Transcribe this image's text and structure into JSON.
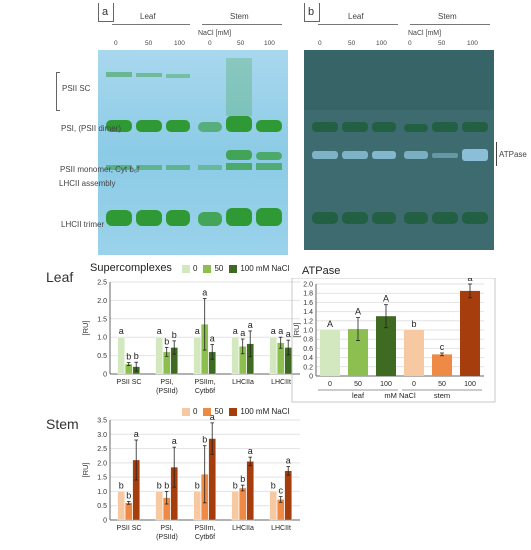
{
  "gel_a": {
    "panel": "a",
    "leaf_label": "Leaf",
    "stem_label": "Stem",
    "nacl_label": "NaCl [mM]",
    "lanes": [
      "0",
      "50",
      "100",
      "0",
      "50",
      "100"
    ],
    "bands": [
      "PSII SC",
      "PSI, (PSII dimer)",
      "PSII monomer, Cyt b₆f",
      "LHCII assembly",
      "LHCII trimer"
    ]
  },
  "gel_b": {
    "panel": "b",
    "leaf_label": "Leaf",
    "stem_label": "Stem",
    "nacl_label": "NaCl [mM]",
    "lanes": [
      "0",
      "50",
      "100",
      "0",
      "50",
      "100"
    ],
    "band": "ATPase"
  },
  "rows": {
    "leaf": "Leaf",
    "stem": "Stem"
  },
  "legend": {
    "title": "Supercomplexes",
    "items": [
      "0",
      "50",
      "100 mM NaCl"
    ],
    "leaf_colors": [
      "#d4e8bf",
      "#8cbf50",
      "#3f6a22"
    ],
    "stem_colors": [
      "#f7c9a2",
      "#ee8a45",
      "#a63d0c"
    ]
  },
  "chart_data": [
    {
      "id": "leaf-supercomplexes",
      "type": "bar",
      "ylabel": "[RU]",
      "ylim": [
        0,
        2.5
      ],
      "yticks": [
        "0",
        "0.5",
        "1.0",
        "1.5",
        "2.0",
        "2.5"
      ],
      "categories": [
        "PSII SC",
        "PSI, (PSIId)",
        "PSIIm, Cytb6f",
        "LHCIIa",
        "LHCIIt"
      ],
      "category_lines": [
        [
          "PSII SC"
        ],
        [
          "PSI,",
          "(PSIId)"
        ],
        [
          "PSIIm,",
          "Cytb6f"
        ],
        [
          "LHCIIa"
        ],
        [
          "LHCIIt"
        ]
      ],
      "series": [
        {
          "name": "0",
          "values": [
            1.0,
            1.0,
            1.0,
            1.0,
            1.0
          ],
          "errors": [
            0,
            0,
            0,
            0,
            0
          ],
          "letters": [
            "a",
            "a",
            "a",
            "a",
            "a"
          ]
        },
        {
          "name": "50",
          "values": [
            0.27,
            0.6,
            1.35,
            0.75,
            0.85
          ],
          "errors": [
            0.04,
            0.12,
            0.7,
            0.2,
            0.15
          ],
          "letters": [
            "b",
            "b",
            "a",
            "a",
            "a"
          ]
        },
        {
          "name": "100 mM NaCl",
          "values": [
            0.2,
            0.72,
            0.6,
            0.82,
            0.72
          ],
          "errors": [
            0.12,
            0.18,
            0.2,
            0.35,
            0.2
          ],
          "letters": [
            "b",
            "b",
            "a",
            "a",
            "a"
          ]
        }
      ]
    },
    {
      "id": "atpase",
      "type": "bar",
      "title": "ATPase",
      "ylabel": "[RU]",
      "ylim": [
        0,
        2.0
      ],
      "yticks": [
        "0",
        "0.2",
        "0.4",
        "0.6",
        "0.8",
        "1.0",
        "1.2",
        "1.4",
        "1.6",
        "1.8",
        "2.0"
      ],
      "categories": [
        "0",
        "50",
        "100",
        "0",
        "50",
        "100"
      ],
      "groups": [
        "leaf",
        "mM NaCl",
        "stem"
      ],
      "values": [
        1.0,
        1.02,
        1.3,
        1.0,
        0.47,
        1.85
      ],
      "errors": [
        0,
        0.25,
        0.25,
        0,
        0.03,
        0.15
      ],
      "letters": [
        "A",
        "A",
        "A",
        "b",
        "c",
        "a"
      ],
      "colors": [
        "#d4e8bf",
        "#8cbf50",
        "#3f6a22",
        "#f7c9a2",
        "#ee8a45",
        "#a63d0c"
      ]
    },
    {
      "id": "stem-supercomplexes",
      "type": "bar",
      "ylabel": "[RU]",
      "ylim": [
        0,
        3.5
      ],
      "yticks": [
        "0",
        "0.5",
        "1.0",
        "1.5",
        "2.0",
        "2.5",
        "3.0",
        "3.5"
      ],
      "categories": [
        "PSII SC",
        "PSI, (PSIId)",
        "PSIIm, Cytb6f",
        "LHCIIa",
        "LHCIIt"
      ],
      "category_lines": [
        [
          "PSII SC"
        ],
        [
          "PSI,",
          "(PSIId)"
        ],
        [
          "PSIIm,",
          "Cytb6f"
        ],
        [
          "LHCIIa"
        ],
        [
          "LHCIIt"
        ]
      ],
      "series": [
        {
          "name": "0",
          "values": [
            1.0,
            1.0,
            1.0,
            1.0,
            1.0
          ],
          "errors": [
            0,
            0,
            0,
            0,
            0
          ],
          "letters": [
            "b",
            "b",
            "b",
            "b",
            "b"
          ]
        },
        {
          "name": "50",
          "values": [
            0.6,
            0.78,
            1.6,
            1.12,
            0.72
          ],
          "errors": [
            0.05,
            0.22,
            1.0,
            0.1,
            0.1
          ],
          "letters": [
            "b",
            "b",
            "b",
            "b",
            "c"
          ]
        },
        {
          "name": "100 mM NaCl",
          "values": [
            2.1,
            1.85,
            2.85,
            2.05,
            1.72
          ],
          "errors": [
            0.7,
            0.7,
            0.55,
            0.15,
            0.15
          ],
          "letters": [
            "a",
            "a",
            "a",
            "a",
            "a"
          ]
        }
      ]
    }
  ]
}
